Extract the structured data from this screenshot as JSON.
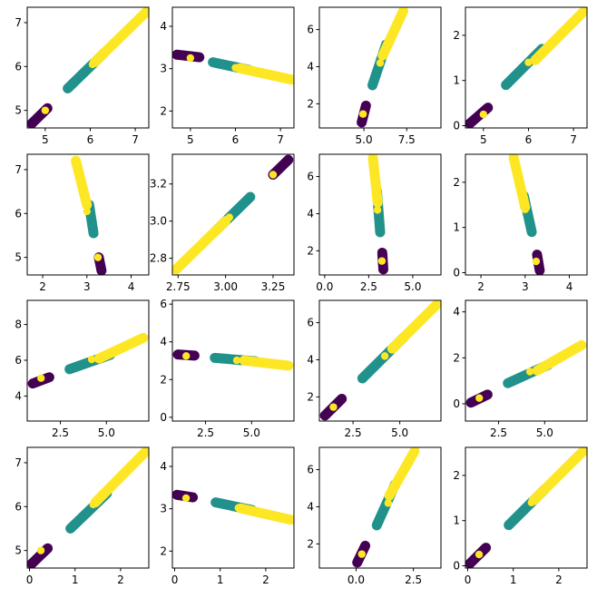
{
  "colors": {
    "low": "#440154",
    "mid": "#21918c",
    "high": "#fde725"
  },
  "chart_data": [
    {
      "type": "scatter",
      "xlim": [
        4.6,
        7.3
      ],
      "ylim": [
        4.6,
        7.35
      ],
      "xticks": [
        {
          "v": 5,
          "l": "5"
        },
        {
          "v": 6,
          "l": "6"
        },
        {
          "v": 7,
          "l": "7"
        }
      ],
      "yticks": [
        {
          "v": 5,
          "l": "5"
        },
        {
          "v": 6,
          "l": "6"
        },
        {
          "v": 7,
          "l": "7"
        }
      ],
      "segments": [
        {
          "group": "low",
          "x1": 4.7,
          "y1": 4.7,
          "x2": 5.05,
          "y2": 5.05
        },
        {
          "group": "mid",
          "x1": 5.5,
          "y1": 5.5,
          "x2": 6.3,
          "y2": 6.3
        },
        {
          "group": "high",
          "x1": 6.1,
          "y1": 6.1,
          "x2": 7.25,
          "y2": 7.25
        }
      ],
      "centers": [
        {
          "group": "mid",
          "x": 5.0,
          "y": 5.0
        },
        {
          "group": "high",
          "x": 6.05,
          "y": 6.05
        }
      ]
    },
    {
      "type": "scatter",
      "xlim": [
        4.6,
        7.3
      ],
      "ylim": [
        1.6,
        4.45
      ],
      "xticks": [
        {
          "v": 5,
          "l": "5"
        },
        {
          "v": 6,
          "l": "6"
        },
        {
          "v": 7,
          "l": "7"
        }
      ],
      "yticks": [
        {
          "v": 2,
          "l": "2"
        },
        {
          "v": 3,
          "l": "3"
        },
        {
          "v": 4,
          "l": "4"
        }
      ],
      "segments": [
        {
          "group": "low",
          "x1": 4.7,
          "y1": 3.33,
          "x2": 5.2,
          "y2": 3.27
        },
        {
          "group": "mid",
          "x1": 5.5,
          "y1": 3.15,
          "x2": 6.3,
          "y2": 2.97
        },
        {
          "group": "high",
          "x1": 6.1,
          "y1": 3.01,
          "x2": 7.25,
          "y2": 2.74
        }
      ],
      "centers": [
        {
          "group": "mid",
          "x": 5.0,
          "y": 3.25
        },
        {
          "group": "high",
          "x": 6.0,
          "y": 3.02
        }
      ]
    },
    {
      "type": "scatter",
      "xlim": [
        2.4,
        9.5
      ],
      "ylim": [
        0.7,
        7.2
      ],
      "xticks": [
        {
          "v": 5,
          "l": "5.0"
        },
        {
          "v": 7.5,
          "l": "7.5"
        }
      ],
      "yticks": [
        {
          "v": 2,
          "l": "2"
        },
        {
          "v": 4,
          "l": "4"
        },
        {
          "v": 6,
          "l": "6"
        }
      ],
      "segments": [
        {
          "group": "low",
          "x1": 4.87,
          "y1": 1.0,
          "x2": 5.12,
          "y2": 1.9
        },
        {
          "group": "mid",
          "x1": 5.5,
          "y1": 3.0,
          "x2": 6.3,
          "y2": 5.2
        },
        {
          "group": "high",
          "x1": 6.1,
          "y1": 4.6,
          "x2": 7.3,
          "y2": 7.0
        }
      ],
      "centers": [
        {
          "group": "mid",
          "x": 4.95,
          "y": 1.45
        },
        {
          "group": "high",
          "x": 5.95,
          "y": 4.2
        }
      ]
    },
    {
      "type": "scatter",
      "xlim": [
        4.6,
        7.3
      ],
      "ylim": [
        -0.05,
        2.62
      ],
      "xticks": [
        {
          "v": 5,
          "l": "5"
        },
        {
          "v": 6,
          "l": "6"
        },
        {
          "v": 7,
          "l": "7"
        }
      ],
      "yticks": [
        {
          "v": 0,
          "l": "0"
        },
        {
          "v": 1,
          "l": "1"
        },
        {
          "v": 2,
          "l": "2"
        }
      ],
      "segments": [
        {
          "group": "low",
          "x1": 4.7,
          "y1": 0.05,
          "x2": 5.1,
          "y2": 0.4
        },
        {
          "group": "mid",
          "x1": 5.5,
          "y1": 0.9,
          "x2": 6.3,
          "y2": 1.7
        },
        {
          "group": "high",
          "x1": 6.15,
          "y1": 1.45,
          "x2": 7.25,
          "y2": 2.55
        }
      ],
      "centers": [
        {
          "group": "mid",
          "x": 5.0,
          "y": 0.25
        },
        {
          "group": "high",
          "x": 6.0,
          "y": 1.4
        }
      ]
    },
    {
      "type": "scatter",
      "xlim": [
        1.65,
        4.4
      ],
      "ylim": [
        4.6,
        7.35
      ],
      "xticks": [
        {
          "v": 2,
          "l": "2"
        },
        {
          "v": 3,
          "l": "3"
        },
        {
          "v": 4,
          "l": "4"
        }
      ],
      "yticks": [
        {
          "v": 5,
          "l": "5"
        },
        {
          "v": 6,
          "l": "6"
        },
        {
          "v": 7,
          "l": "7"
        }
      ],
      "segments": [
        {
          "group": "low",
          "x1": 3.27,
          "y1": 5.0,
          "x2": 3.33,
          "y2": 4.7
        },
        {
          "group": "mid",
          "x1": 3.05,
          "y1": 6.2,
          "x2": 3.15,
          "y2": 5.55
        },
        {
          "group": "high",
          "x1": 2.75,
          "y1": 7.2,
          "x2": 3.0,
          "y2": 6.2
        }
      ],
      "centers": [
        {
          "group": "mid",
          "x": 3.25,
          "y": 5.0
        },
        {
          "group": "high",
          "x": 3.0,
          "y": 6.05
        }
      ]
    },
    {
      "type": "scatter",
      "xlim": [
        2.72,
        3.36
      ],
      "ylim": [
        2.71,
        3.36
      ],
      "xticks": [
        {
          "v": 2.75,
          "l": "2.75"
        },
        {
          "v": 3.0,
          "l": "3.00"
        },
        {
          "v": 3.25,
          "l": "3.25"
        }
      ],
      "yticks": [
        {
          "v": 2.8,
          "l": "2.8"
        },
        {
          "v": 3.0,
          "l": "3.0"
        },
        {
          "v": 3.2,
          "l": "3.2"
        }
      ],
      "segments": [
        {
          "group": "low",
          "x1": 3.25,
          "y1": 3.25,
          "x2": 3.33,
          "y2": 3.33
        },
        {
          "group": "mid",
          "x1": 2.95,
          "y1": 2.95,
          "x2": 3.13,
          "y2": 3.13
        },
        {
          "group": "high",
          "x1": 2.74,
          "y1": 2.74,
          "x2": 3.0,
          "y2": 3.0
        }
      ],
      "centers": [
        {
          "group": "mid",
          "x": 3.25,
          "y": 3.25
        },
        {
          "group": "high",
          "x": 3.02,
          "y": 3.02
        }
      ]
    },
    {
      "type": "scatter",
      "xlim": [
        -0.3,
        6.6
      ],
      "ylim": [
        0.7,
        7.2
      ],
      "xticks": [
        {
          "v": 0,
          "l": "0.0"
        },
        {
          "v": 2.5,
          "l": "2.5"
        },
        {
          "v": 5.0,
          "l": "5.0"
        }
      ],
      "yticks": [
        {
          "v": 2,
          "l": "2"
        },
        {
          "v": 4,
          "l": "4"
        },
        {
          "v": 6,
          "l": "6"
        }
      ],
      "segments": [
        {
          "group": "low",
          "x1": 3.27,
          "y1": 1.9,
          "x2": 3.33,
          "y2": 1.0
        },
        {
          "group": "mid",
          "x1": 2.97,
          "y1": 5.2,
          "x2": 3.15,
          "y2": 3.0
        },
        {
          "group": "high",
          "x1": 2.74,
          "y1": 7.0,
          "x2": 3.01,
          "y2": 4.6
        }
      ],
      "centers": [
        {
          "group": "mid",
          "x": 3.25,
          "y": 1.45
        },
        {
          "group": "high",
          "x": 3.0,
          "y": 4.2
        }
      ]
    },
    {
      "type": "scatter",
      "xlim": [
        1.65,
        4.4
      ],
      "ylim": [
        -0.05,
        2.62
      ],
      "xticks": [
        {
          "v": 2,
          "l": "2"
        },
        {
          "v": 3,
          "l": "3"
        },
        {
          "v": 4,
          "l": "4"
        }
      ],
      "yticks": [
        {
          "v": 0,
          "l": "0"
        },
        {
          "v": 1,
          "l": "1"
        },
        {
          "v": 2,
          "l": "2"
        }
      ],
      "segments": [
        {
          "group": "low",
          "x1": 3.27,
          "y1": 0.4,
          "x2": 3.33,
          "y2": 0.05
        },
        {
          "group": "mid",
          "x1": 2.97,
          "y1": 1.7,
          "x2": 3.15,
          "y2": 0.9
        },
        {
          "group": "high",
          "x1": 2.74,
          "y1": 2.55,
          "x2": 3.0,
          "y2": 1.45
        }
      ],
      "centers": [
        {
          "group": "mid",
          "x": 3.25,
          "y": 0.25
        },
        {
          "group": "high",
          "x": 3.0,
          "y": 1.4
        }
      ]
    },
    {
      "type": "scatter",
      "xlim": [
        0.7,
        7.3
      ],
      "ylim": [
        2.6,
        9.35
      ],
      "xticks": [
        {
          "v": 2.5,
          "l": "2.5"
        },
        {
          "v": 5.0,
          "l": "5.0"
        }
      ],
      "yticks": [
        {
          "v": 4,
          "l": "4"
        },
        {
          "v": 6,
          "l": "6"
        },
        {
          "v": 8,
          "l": "8"
        }
      ],
      "segments": [
        {
          "group": "low",
          "x1": 1.0,
          "y1": 4.7,
          "x2": 1.9,
          "y2": 5.05
        },
        {
          "group": "mid",
          "x1": 3.0,
          "y1": 5.5,
          "x2": 5.2,
          "y2": 6.3
        },
        {
          "group": "high",
          "x1": 4.6,
          "y1": 6.1,
          "x2": 7.0,
          "y2": 7.25
        }
      ],
      "centers": [
        {
          "group": "mid",
          "x": 1.45,
          "y": 5.0
        },
        {
          "group": "high",
          "x": 4.2,
          "y": 6.05
        }
      ]
    },
    {
      "type": "scatter",
      "xlim": [
        0.7,
        7.3
      ],
      "ylim": [
        -0.2,
        6.2
      ],
      "xticks": [
        {
          "v": 2.5,
          "l": "2.5"
        },
        {
          "v": 5.0,
          "l": "5.0"
        }
      ],
      "yticks": [
        {
          "v": 0,
          "l": "0"
        },
        {
          "v": 2,
          "l": "2"
        },
        {
          "v": 4,
          "l": "4"
        },
        {
          "v": 6,
          "l": "6"
        }
      ],
      "segments": [
        {
          "group": "low",
          "x1": 1.0,
          "y1": 3.33,
          "x2": 1.9,
          "y2": 3.27
        },
        {
          "group": "mid",
          "x1": 3.0,
          "y1": 3.15,
          "x2": 5.2,
          "y2": 2.97
        },
        {
          "group": "high",
          "x1": 4.6,
          "y1": 3.01,
          "x2": 7.0,
          "y2": 2.74
        }
      ],
      "centers": [
        {
          "group": "mid",
          "x": 1.45,
          "y": 3.25
        },
        {
          "group": "high",
          "x": 4.2,
          "y": 3.02
        }
      ]
    },
    {
      "type": "scatter",
      "xlim": [
        0.7,
        7.2
      ],
      "ylim": [
        0.7,
        7.2
      ],
      "xticks": [
        {
          "v": 2.5,
          "l": "2.5"
        },
        {
          "v": 5.0,
          "l": "5.0"
        }
      ],
      "yticks": [
        {
          "v": 2,
          "l": "2"
        },
        {
          "v": 4,
          "l": "4"
        },
        {
          "v": 6,
          "l": "6"
        }
      ],
      "segments": [
        {
          "group": "low",
          "x1": 1.0,
          "y1": 1.0,
          "x2": 1.9,
          "y2": 1.9
        },
        {
          "group": "mid",
          "x1": 3.0,
          "y1": 3.0,
          "x2": 5.2,
          "y2": 5.2
        },
        {
          "group": "high",
          "x1": 4.6,
          "y1": 4.6,
          "x2": 7.0,
          "y2": 7.0
        }
      ],
      "centers": [
        {
          "group": "mid",
          "x": 1.45,
          "y": 1.45
        },
        {
          "group": "high",
          "x": 4.2,
          "y": 4.2
        }
      ]
    },
    {
      "type": "scatter",
      "xlim": [
        0.7,
        7.3
      ],
      "ylim": [
        -0.75,
        4.5
      ],
      "xticks": [
        {
          "v": 2.5,
          "l": "2.5"
        },
        {
          "v": 5.0,
          "l": "5.0"
        }
      ],
      "yticks": [
        {
          "v": 0,
          "l": "0"
        },
        {
          "v": 2,
          "l": "2"
        },
        {
          "v": 4,
          "l": "4"
        }
      ],
      "segments": [
        {
          "group": "low",
          "x1": 1.0,
          "y1": 0.05,
          "x2": 1.9,
          "y2": 0.4
        },
        {
          "group": "mid",
          "x1": 3.0,
          "y1": 0.9,
          "x2": 5.2,
          "y2": 1.7
        },
        {
          "group": "high",
          "x1": 4.6,
          "y1": 1.45,
          "x2": 7.0,
          "y2": 2.55
        }
      ],
      "centers": [
        {
          "group": "mid",
          "x": 1.45,
          "y": 0.25
        },
        {
          "group": "high",
          "x": 4.2,
          "y": 1.4
        }
      ]
    },
    {
      "type": "scatter",
      "xlim": [
        -0.05,
        2.62
      ],
      "ylim": [
        4.6,
        7.35
      ],
      "xticks": [
        {
          "v": 0,
          "l": "0"
        },
        {
          "v": 1,
          "l": "1"
        },
        {
          "v": 2,
          "l": "2"
        }
      ],
      "yticks": [
        {
          "v": 5,
          "l": "5"
        },
        {
          "v": 6,
          "l": "6"
        },
        {
          "v": 7,
          "l": "7"
        }
      ],
      "segments": [
        {
          "group": "low",
          "x1": 0.05,
          "y1": 4.7,
          "x2": 0.4,
          "y2": 5.05
        },
        {
          "group": "mid",
          "x1": 0.9,
          "y1": 5.5,
          "x2": 1.7,
          "y2": 6.3
        },
        {
          "group": "high",
          "x1": 1.45,
          "y1": 6.1,
          "x2": 2.55,
          "y2": 7.25
        }
      ],
      "centers": [
        {
          "group": "mid",
          "x": 0.25,
          "y": 5.0
        },
        {
          "group": "high",
          "x": 1.4,
          "y": 6.05
        }
      ]
    },
    {
      "type": "scatter",
      "xlim": [
        -0.05,
        2.62
      ],
      "ylim": [
        1.6,
        4.45
      ],
      "xticks": [
        {
          "v": 0,
          "l": "0"
        },
        {
          "v": 1,
          "l": "1"
        },
        {
          "v": 2,
          "l": "2"
        }
      ],
      "yticks": [
        {
          "v": 2,
          "l": "2"
        },
        {
          "v": 3,
          "l": "3"
        },
        {
          "v": 4,
          "l": "4"
        }
      ],
      "segments": [
        {
          "group": "low",
          "x1": 0.05,
          "y1": 3.33,
          "x2": 0.4,
          "y2": 3.27
        },
        {
          "group": "mid",
          "x1": 0.9,
          "y1": 3.15,
          "x2": 1.7,
          "y2": 2.97
        },
        {
          "group": "high",
          "x1": 1.45,
          "y1": 3.01,
          "x2": 2.55,
          "y2": 2.74
        }
      ],
      "centers": [
        {
          "group": "mid",
          "x": 0.25,
          "y": 3.25
        },
        {
          "group": "high",
          "x": 1.4,
          "y": 3.02
        }
      ]
    },
    {
      "type": "scatter",
      "xlim": [
        -1.6,
        3.7
      ],
      "ylim": [
        0.7,
        7.2
      ],
      "xticks": [
        {
          "v": 0,
          "l": "0.0"
        },
        {
          "v": 2.5,
          "l": "2.5"
        }
      ],
      "yticks": [
        {
          "v": 2,
          "l": "2"
        },
        {
          "v": 4,
          "l": "4"
        },
        {
          "v": 6,
          "l": "6"
        }
      ],
      "segments": [
        {
          "group": "low",
          "x1": 0.05,
          "y1": 1.0,
          "x2": 0.4,
          "y2": 1.9
        },
        {
          "group": "mid",
          "x1": 0.9,
          "y1": 3.0,
          "x2": 1.7,
          "y2": 5.2
        },
        {
          "group": "high",
          "x1": 1.45,
          "y1": 4.6,
          "x2": 2.55,
          "y2": 7.0
        }
      ],
      "centers": [
        {
          "group": "mid",
          "x": 0.25,
          "y": 1.45
        },
        {
          "group": "high",
          "x": 1.4,
          "y": 4.2
        }
      ]
    },
    {
      "type": "scatter",
      "xlim": [
        -0.05,
        2.62
      ],
      "ylim": [
        -0.05,
        2.62
      ],
      "xticks": [
        {
          "v": 0,
          "l": "0"
        },
        {
          "v": 1,
          "l": "1"
        },
        {
          "v": 2,
          "l": "2"
        }
      ],
      "yticks": [
        {
          "v": 0,
          "l": "0"
        },
        {
          "v": 1,
          "l": "1"
        },
        {
          "v": 2,
          "l": "2"
        }
      ],
      "segments": [
        {
          "group": "low",
          "x1": 0.05,
          "y1": 0.05,
          "x2": 0.4,
          "y2": 0.4
        },
        {
          "group": "mid",
          "x1": 0.9,
          "y1": 0.9,
          "x2": 1.7,
          "y2": 1.7
        },
        {
          "group": "high",
          "x1": 1.45,
          "y1": 1.45,
          "x2": 2.55,
          "y2": 2.55
        }
      ],
      "centers": [
        {
          "group": "mid",
          "x": 0.25,
          "y": 0.25
        },
        {
          "group": "high",
          "x": 1.4,
          "y": 1.4
        }
      ]
    }
  ]
}
